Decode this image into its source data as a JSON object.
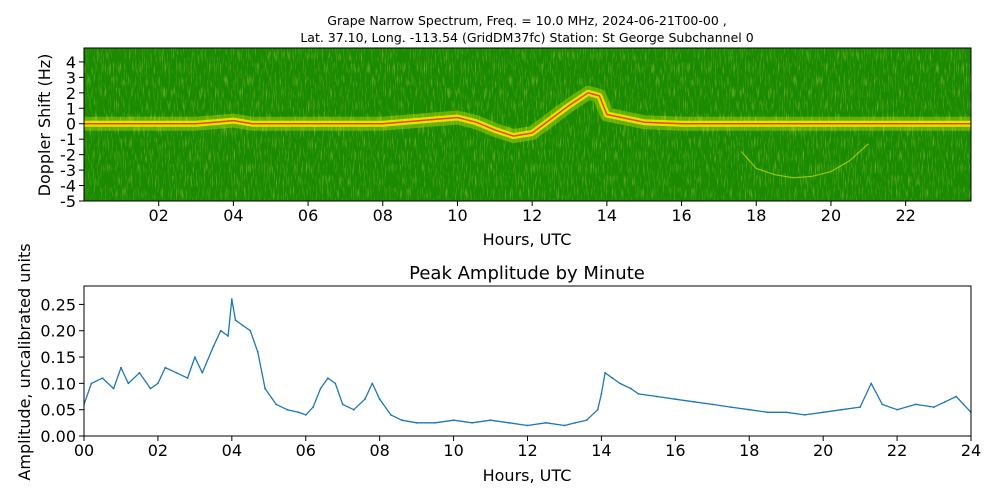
{
  "chart_data": [
    {
      "type": "heatmap",
      "title_lines": [
        "Grape Narrow Spectrum, Freq. = 10.0 MHz, 2024-06-21T00-00 ,",
        "Lat.  37.10, Long. -113.54 (GridDM37fc) Station: St George Subchannel 0"
      ],
      "xlabel": "Hours, UTC",
      "ylabel": "Doppler Shift (Hz)",
      "xlim": [
        0,
        23.75
      ],
      "ylim": [
        -5,
        4.9
      ],
      "x_tick_labels": [
        "02",
        "04",
        "06",
        "08",
        "10",
        "12",
        "14",
        "16",
        "18",
        "20",
        "22"
      ],
      "y_tick_labels": [
        "4",
        "3",
        "2",
        "1",
        "0",
        "-1",
        "-2",
        "-3",
        "-4",
        "-5"
      ],
      "colors": {
        "background": "#1a8a00",
        "mid": "#f2f200",
        "peak": "#ff2a00"
      },
      "trace": {
        "x": [
          0,
          1,
          2,
          3,
          3.5,
          4,
          4.5,
          5,
          6,
          7,
          8,
          9,
          10,
          10.5,
          11,
          11.5,
          12,
          12.5,
          13,
          13.5,
          13.8,
          14,
          15,
          16,
          18,
          20,
          22,
          23.75
        ],
        "y": [
          0,
          0,
          0,
          0,
          0.1,
          0.2,
          0,
          0,
          0,
          0,
          0,
          0.2,
          0.4,
          0.1,
          -0.4,
          -0.8,
          -0.6,
          0.3,
          1.2,
          2.0,
          1.8,
          0.6,
          0.1,
          0,
          0,
          0,
          0,
          0
        ]
      },
      "secondary_trace": {
        "x": [
          17.6,
          18.0,
          18.5,
          19.0,
          19.5,
          20.0,
          20.5,
          21.0
        ],
        "y": [
          -1.8,
          -2.9,
          -3.3,
          -3.5,
          -3.4,
          -3.1,
          -2.4,
          -1.3
        ]
      }
    },
    {
      "type": "line",
      "title": "Peak Amplitude by Minute",
      "xlabel": "Hours, UTC",
      "ylabel": "Amplitude, uncalibrated units",
      "xlim": [
        0,
        24
      ],
      "ylim": [
        0,
        0.285
      ],
      "x_tick_labels": [
        "00",
        "02",
        "04",
        "06",
        "08",
        "10",
        "12",
        "14",
        "16",
        "18",
        "20",
        "22",
        "24"
      ],
      "y_tick_labels": [
        "0.00",
        "0.05",
        "0.10",
        "0.15",
        "0.20",
        "0.25"
      ],
      "color": "#1f77b4",
      "x": [
        0,
        0.2,
        0.5,
        0.8,
        1.0,
        1.2,
        1.5,
        1.8,
        2.0,
        2.2,
        2.5,
        2.8,
        3.0,
        3.2,
        3.5,
        3.7,
        3.9,
        4.0,
        4.1,
        4.3,
        4.5,
        4.7,
        4.9,
        5.2,
        5.5,
        5.8,
        6.0,
        6.2,
        6.4,
        6.6,
        6.8,
        7.0,
        7.3,
        7.6,
        7.8,
        8.0,
        8.3,
        8.6,
        9.0,
        9.5,
        10.0,
        10.5,
        11.0,
        11.5,
        12.0,
        12.5,
        13.0,
        13.3,
        13.6,
        13.9,
        14.0,
        14.1,
        14.3,
        14.5,
        14.8,
        15.0,
        15.5,
        16.0,
        16.5,
        17.0,
        17.5,
        18.0,
        18.5,
        19.0,
        19.5,
        20.0,
        20.5,
        21.0,
        21.3,
        21.6,
        22.0,
        22.5,
        23.0,
        23.3,
        23.6,
        23.8,
        24.0
      ],
      "y": [
        0.06,
        0.1,
        0.11,
        0.09,
        0.13,
        0.1,
        0.12,
        0.09,
        0.1,
        0.13,
        0.12,
        0.11,
        0.15,
        0.12,
        0.17,
        0.2,
        0.19,
        0.26,
        0.22,
        0.21,
        0.2,
        0.16,
        0.09,
        0.06,
        0.05,
        0.045,
        0.04,
        0.055,
        0.09,
        0.11,
        0.1,
        0.06,
        0.05,
        0.07,
        0.1,
        0.07,
        0.04,
        0.03,
        0.025,
        0.025,
        0.03,
        0.025,
        0.03,
        0.025,
        0.02,
        0.025,
        0.02,
        0.025,
        0.03,
        0.05,
        0.08,
        0.12,
        0.11,
        0.1,
        0.09,
        0.08,
        0.075,
        0.07,
        0.065,
        0.06,
        0.055,
        0.05,
        0.045,
        0.045,
        0.04,
        0.045,
        0.05,
        0.055,
        0.1,
        0.06,
        0.05,
        0.06,
        0.055,
        0.065,
        0.075,
        0.06,
        0.045
      ]
    }
  ]
}
